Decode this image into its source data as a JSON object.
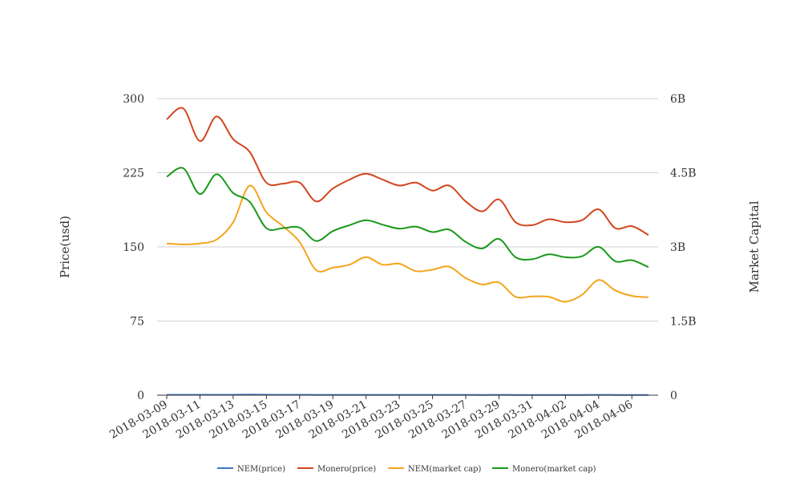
{
  "chart_data": {
    "type": "line",
    "title": "",
    "xlabel": "",
    "ylabel": "Price(usd)",
    "y2label": "Market Capital",
    "ylim": [
      0,
      300
    ],
    "y2lim": [
      0,
      6000000000
    ],
    "yticks": [
      "0",
      "75",
      "150",
      "225",
      "300"
    ],
    "y2ticks": [
      "0",
      "1.5B",
      "3B",
      "4.5B",
      "6B"
    ],
    "grid": true,
    "legend_position": "bottom",
    "x": [
      "2018-03-09",
      "2018-03-10",
      "2018-03-11",
      "2018-03-12",
      "2018-03-13",
      "2018-03-14",
      "2018-03-15",
      "2018-03-16",
      "2018-03-17",
      "2018-03-18",
      "2018-03-19",
      "2018-03-20",
      "2018-03-21",
      "2018-03-22",
      "2018-03-23",
      "2018-03-24",
      "2018-03-25",
      "2018-03-26",
      "2018-03-27",
      "2018-03-28",
      "2018-03-29",
      "2018-03-30",
      "2018-03-31",
      "2018-04-01",
      "2018-04-02",
      "2018-04-03",
      "2018-04-04",
      "2018-04-05",
      "2018-04-06",
      "2018-04-07"
    ],
    "xtick_labels": [
      "2018-03-09",
      "2018-03-11",
      "2018-03-13",
      "2018-03-15",
      "2018-03-17",
      "2018-03-19",
      "2018-03-21",
      "2018-03-23",
      "2018-03-25",
      "2018-03-27",
      "2018-03-29",
      "2018-03-31",
      "2018-04-02",
      "2018-04-04",
      "2018-04-06"
    ],
    "series": [
      {
        "name": "NEM(price)",
        "axis": "left",
        "color": "#3f74c6",
        "values": [
          0.4,
          0.42,
          0.39,
          0.4,
          0.44,
          0.55,
          0.45,
          0.42,
          0.38,
          0.33,
          0.33,
          0.33,
          0.34,
          0.33,
          0.33,
          0.31,
          0.32,
          0.32,
          0.3,
          0.28,
          0.29,
          0.25,
          0.25,
          0.25,
          0.24,
          0.25,
          0.29,
          0.27,
          0.26,
          0.25
        ]
      },
      {
        "name": "Monero(price)",
        "axis": "left",
        "color": "#d2461e",
        "values": [
          279,
          290,
          257,
          282,
          259,
          246,
          215,
          214,
          215,
          196,
          209,
          218,
          224,
          218,
          212,
          215,
          207,
          212,
          196,
          186,
          198,
          175,
          172,
          178,
          175,
          177,
          188,
          169,
          171,
          162
        ]
      },
      {
        "name": "NEM(market cap)",
        "axis": "right",
        "color": "#f4a41c",
        "values": [
          3070000000,
          3050000000,
          3070000000,
          3150000000,
          3500000000,
          4240000000,
          3700000000,
          3420000000,
          3100000000,
          2530000000,
          2580000000,
          2640000000,
          2790000000,
          2640000000,
          2660000000,
          2510000000,
          2540000000,
          2600000000,
          2370000000,
          2240000000,
          2280000000,
          1990000000,
          2000000000,
          1990000000,
          1890000000,
          2030000000,
          2330000000,
          2120000000,
          2010000000,
          1980000000
        ]
      },
      {
        "name": "Monero(market cap)",
        "axis": "right",
        "color": "#1a981a",
        "values": [
          4420000000,
          4590000000,
          4070000000,
          4470000000,
          4090000000,
          3910000000,
          3380000000,
          3380000000,
          3390000000,
          3120000000,
          3320000000,
          3440000000,
          3540000000,
          3450000000,
          3370000000,
          3410000000,
          3300000000,
          3350000000,
          3100000000,
          2970000000,
          3160000000,
          2790000000,
          2750000000,
          2850000000,
          2790000000,
          2810000000,
          3000000000,
          2710000000,
          2730000000,
          2590000000
        ]
      }
    ]
  }
}
